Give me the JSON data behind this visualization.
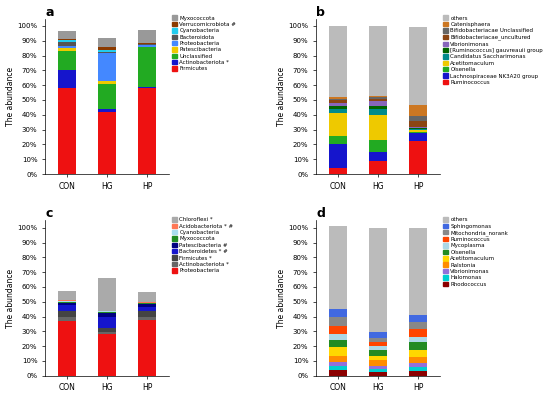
{
  "panel_a": {
    "title": "a",
    "categories": [
      "CON",
      "HG",
      "HP"
    ],
    "labels": [
      "Firmicutes",
      "Actinobacteriota *",
      "Unclassified",
      "Patescibacteria",
      "Proteobacteria",
      "Bacteroidota",
      "Cyanobacteria",
      "Verrucomicrobiota #",
      "Myxococcota"
    ],
    "colors": [
      "#EE1111",
      "#1515CC",
      "#22AA22",
      "#EEC900",
      "#4488FF",
      "#555555",
      "#22CCEE",
      "#8B3A00",
      "#999999"
    ],
    "values": [
      [
        0.58,
        0.12,
        0.13,
        0.02,
        0.015,
        0.025,
        0.015,
        0.01,
        0.05
      ],
      [
        0.42,
        0.02,
        0.165,
        0.025,
        0.185,
        0.01,
        0.015,
        0.015,
        0.065
      ],
      [
        0.58,
        0.005,
        0.27,
        0.005,
        0.01,
        0.005,
        0.005,
        0.005,
        0.085
      ]
    ]
  },
  "panel_b": {
    "title": "b",
    "categories": [
      "CON",
      "HG",
      "HP"
    ],
    "labels": [
      "Ruminococcus",
      "Lachnospiraceae NK3A20 group",
      "Olsenella",
      "Acetitomaculum",
      "Candidatus Saccharimonas",
      "[Ruminococcus] gauvreauii group",
      "Vibrionimonas",
      "Bifidobacteriacae_uncultured",
      "Bifidobacteriacae Unclassified",
      "Catenisphaera",
      "others"
    ],
    "colors": [
      "#EE1111",
      "#1515CC",
      "#22AA22",
      "#EEC900",
      "#008B8B",
      "#006400",
      "#8866BB",
      "#8B4513",
      "#666666",
      "#CC7722",
      "#BBBBBB"
    ],
    "values": [
      [
        0.04,
        0.16,
        0.06,
        0.15,
        0.03,
        0.02,
        0.02,
        0.02,
        0.01,
        0.01,
        0.48
      ],
      [
        0.09,
        0.06,
        0.08,
        0.17,
        0.04,
        0.02,
        0.03,
        0.02,
        0.01,
        0.005,
        0.475
      ],
      [
        0.22,
        0.055,
        0.01,
        0.01,
        0.01,
        0.005,
        0.005,
        0.04,
        0.04,
        0.07,
        0.525
      ]
    ]
  },
  "panel_c": {
    "title": "c",
    "categories": [
      "CON",
      "HG",
      "HP"
    ],
    "labels": [
      "Proteobacteria",
      "Actinobacteriota *",
      "Firmicutes *",
      "Bacteroidetes * #",
      "Patescibacteria #",
      "Myxococcota",
      "Cyanobacteria",
      "Acidobacteriota * #",
      "Chloroflexi *"
    ],
    "colors": [
      "#EE1111",
      "#666666",
      "#444444",
      "#1515CC",
      "#000080",
      "#228B22",
      "#AADDEE",
      "#FF7755",
      "#AAAAAA"
    ],
    "values": [
      [
        0.37,
        0.025,
        0.04,
        0.04,
        0.02,
        0.005,
        0.005,
        0.005,
        0.06
      ],
      [
        0.28,
        0.015,
        0.03,
        0.07,
        0.03,
        0.005,
        0.005,
        0.005,
        0.22
      ],
      [
        0.38,
        0.02,
        0.035,
        0.03,
        0.02,
        0.005,
        0.005,
        0.005,
        0.065
      ]
    ]
  },
  "panel_d": {
    "title": "d",
    "categories": [
      "CON",
      "HG",
      "HP"
    ],
    "labels": [
      "Rhodococcus",
      "Halomonas",
      "Vibrionimonas",
      "Ralstonia",
      "Acetitomaculum",
      "Olsenella",
      "Mycoplasma",
      "Ruminococcus",
      "Mitochondria_norank",
      "Sphingomonas",
      "others"
    ],
    "colors": [
      "#8B0000",
      "#00CED1",
      "#9370DB",
      "#FF8C00",
      "#FFD700",
      "#228B22",
      "#ADD8E6",
      "#FF4500",
      "#888888",
      "#4169E1",
      "#BBBBBB"
    ],
    "values": [
      [
        0.04,
        0.025,
        0.03,
        0.04,
        0.06,
        0.05,
        0.04,
        0.05,
        0.06,
        0.055,
        0.56
      ],
      [
        0.025,
        0.02,
        0.02,
        0.04,
        0.03,
        0.04,
        0.025,
        0.03,
        0.025,
        0.04,
        0.705
      ],
      [
        0.035,
        0.025,
        0.025,
        0.04,
        0.05,
        0.055,
        0.035,
        0.05,
        0.05,
        0.045,
        0.59
      ]
    ]
  }
}
